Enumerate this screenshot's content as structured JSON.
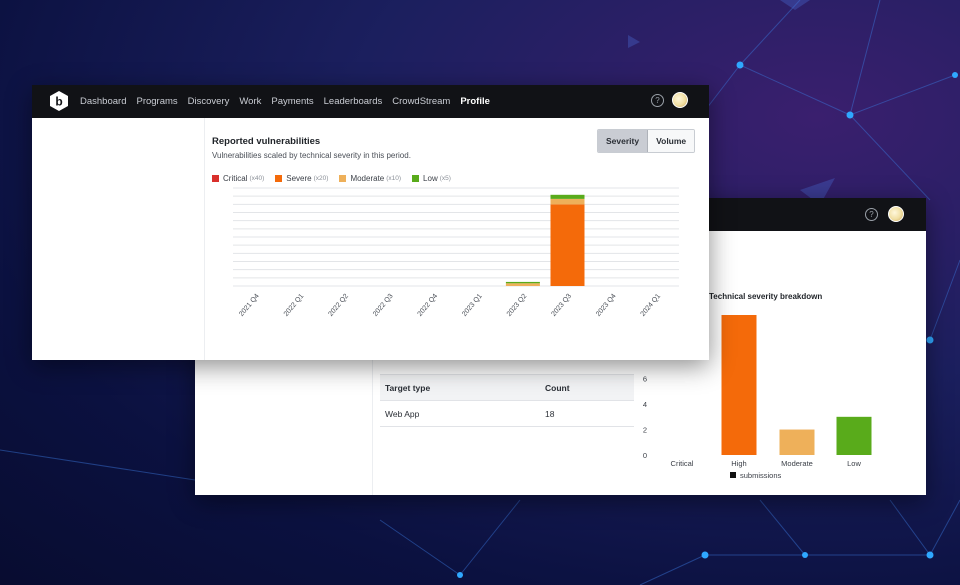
{
  "colors": {
    "critical": "#d9302c",
    "severe": "#f46a0a",
    "moderate": "#eeb05a",
    "low": "#59ab1b"
  },
  "icons": {
    "logo": "bugcrowd-logo",
    "help": "help-icon",
    "avatar": "avatar"
  },
  "nav": {
    "items": [
      "Dashboard",
      "Programs",
      "Discovery",
      "Work",
      "Payments",
      "Leaderboards",
      "CrowdStream",
      "Profile"
    ],
    "active": "Profile"
  },
  "front_panel": {
    "title": "Reported vulnerabilities",
    "subtitle": "Vulnerabilities scaled by technical severity in this period.",
    "toggle": {
      "severity": "Severity",
      "volume": "Volume",
      "selected": "Severity"
    },
    "legend": [
      {
        "label": "Critical",
        "mult": "(x40)"
      },
      {
        "label": "Severe",
        "mult": "(x20)"
      },
      {
        "label": "Moderate",
        "mult": "(x10)"
      },
      {
        "label": "Low",
        "mult": "(x5)"
      }
    ]
  },
  "back_panel": {
    "table": {
      "headers": [
        "Target type",
        "Count"
      ],
      "rows": [
        [
          "Web App",
          "18"
        ]
      ]
    },
    "chart_title": "Technical severity breakdown",
    "legend_label": "submissions"
  },
  "chart_data": [
    {
      "type": "bar",
      "title": "Reported vulnerabilities",
      "stacked": true,
      "categories": [
        "2021 Q4",
        "2022 Q1",
        "2022 Q2",
        "2022 Q3",
        "2022 Q4",
        "2023 Q1",
        "2023 Q2",
        "2023 Q3",
        "2023 Q4",
        "2024 Q1"
      ],
      "series": [
        {
          "name": "Critical",
          "values": [
            0,
            0,
            0,
            0,
            0,
            0,
            0,
            0,
            0,
            0
          ]
        },
        {
          "name": "Severe",
          "values": [
            0,
            0,
            0,
            0,
            0,
            0,
            0,
            300,
            0,
            0
          ]
        },
        {
          "name": "Moderate",
          "values": [
            0,
            0,
            0,
            0,
            0,
            0,
            10,
            20,
            0,
            0
          ]
        },
        {
          "name": "Low",
          "values": [
            0,
            0,
            0,
            0,
            0,
            0,
            5,
            15,
            0,
            0
          ]
        }
      ],
      "ylim": [
        0,
        360
      ],
      "grid": true,
      "legend": "top-left"
    },
    {
      "type": "bar",
      "title": "Technical severity breakdown",
      "categories": [
        "Critical",
        "High",
        "Moderate",
        "Low"
      ],
      "series": [
        {
          "name": "submissions",
          "values": [
            0,
            11,
            2,
            3
          ]
        }
      ],
      "yticks": [
        0,
        2,
        4,
        6
      ],
      "ylim": [
        0,
        11
      ],
      "legend": "bottom"
    }
  ]
}
